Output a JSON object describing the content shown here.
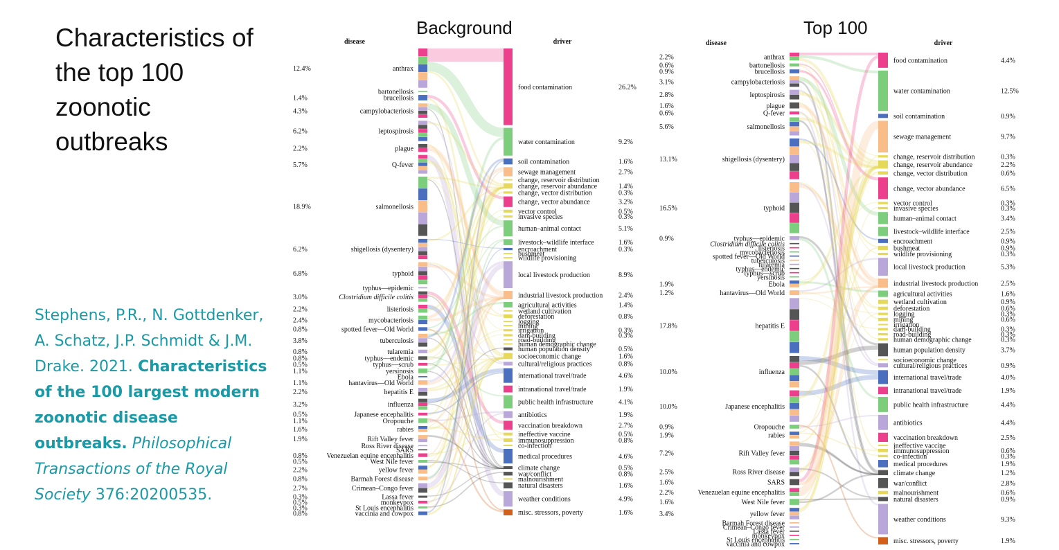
{
  "title": "Characteristics of the top 100 zoonotic outbreaks",
  "citation": {
    "authors": "Stephens, P.R., N. Gottdenker, A. Schatz, J.P. Schmidt & J.M. Drake. 2021.",
    "article": "Characteristics of the 100 largest modern zoonotic disease outbreaks.",
    "journal": "Philosophical Transactions of the Royal Society",
    "volume": "376:20200535."
  },
  "colors": {
    "food": "#ec3f8c",
    "water": "#7ccd7c",
    "soil": "#4a6fbf",
    "sewage": "#f9bd8a",
    "purple": "#b9a7d9",
    "darkgray": "#555555"
  },
  "chart_data": [
    {
      "type": "sankey",
      "title": "Background",
      "left_header": "disease",
      "right_header": "driver",
      "diseases": [
        {
          "name": "anthrax",
          "pct": "12.4%"
        },
        {
          "name": "bartonellosis",
          "pct": ""
        },
        {
          "name": "brucellosis",
          "pct": "1.4%"
        },
        {
          "name": "campylobacteriosis",
          "pct": "4.3%"
        },
        {
          "name": "leptospirosis",
          "pct": "6.2%"
        },
        {
          "name": "plague",
          "pct": "2.2%"
        },
        {
          "name": "Q-fever",
          "pct": "5.7%"
        },
        {
          "name": "salmonellosis",
          "pct": "18.9%"
        },
        {
          "name": "shigellosis (dysentery)",
          "pct": "6.2%"
        },
        {
          "name": "typhoid",
          "pct": "6.8%"
        },
        {
          "name": "typhus—epidemic",
          "pct": ""
        },
        {
          "name": "Clostridium difficile colitis",
          "pct": "3.0%"
        },
        {
          "name": "listeriosis",
          "pct": "2.2%"
        },
        {
          "name": "mycobacteriosis",
          "pct": "2.4%"
        },
        {
          "name": "spotted fever—Old World",
          "pct": "0.8%"
        },
        {
          "name": "tuberculosis",
          "pct": "3.8%"
        },
        {
          "name": "tularemia",
          "pct": "0.8%"
        },
        {
          "name": "typhus—endemic",
          "pct": "0.8%"
        },
        {
          "name": "typhus—scrub",
          "pct": "0.5%"
        },
        {
          "name": "yersinosis",
          "pct": "1.1%"
        },
        {
          "name": "Ebola",
          "pct": ""
        },
        {
          "name": "hantavirus—Old World",
          "pct": "1.1%"
        },
        {
          "name": "hepatitis E",
          "pct": "2.2%"
        },
        {
          "name": "influenza",
          "pct": "3.2%"
        },
        {
          "name": "Japanese encephalitis",
          "pct": "0.5%"
        },
        {
          "name": "Oropouche",
          "pct": "1.1%"
        },
        {
          "name": "rabies",
          "pct": "1.6%"
        },
        {
          "name": "Rift Valley fever",
          "pct": "1.9%"
        },
        {
          "name": "Ross River disease",
          "pct": ""
        },
        {
          "name": "SARS",
          "pct": ""
        },
        {
          "name": "Venezuelan equine encephalitis",
          "pct": "0.8%"
        },
        {
          "name": "West Nile fever",
          "pct": "0.5%"
        },
        {
          "name": "yellow fever",
          "pct": "2.2%"
        },
        {
          "name": "Barmah Forest disease",
          "pct": "0.8%"
        },
        {
          "name": "Crimean–Congo fever",
          "pct": "2.7%"
        },
        {
          "name": "Lassa fever",
          "pct": "0.3%"
        },
        {
          "name": "monkeypox",
          "pct": "0.5%"
        },
        {
          "name": "St Louis encephalitis",
          "pct": "0.3%"
        },
        {
          "name": "vaccinia and cowpox",
          "pct": "0.8%"
        }
      ],
      "drivers": [
        {
          "name": "food contamination",
          "pct": "26.2%"
        },
        {
          "name": "water contamination",
          "pct": "9.2%"
        },
        {
          "name": "soil contamination",
          "pct": "1.6%"
        },
        {
          "name": "sewage management",
          "pct": "2.7%"
        },
        {
          "name": "change, reservoir distribution",
          "pct": ""
        },
        {
          "name": "change, reservoir abundance",
          "pct": "1.4%"
        },
        {
          "name": "change, vector distribution",
          "pct": "0.3%"
        },
        {
          "name": "change, vector abundance",
          "pct": "3.2%"
        },
        {
          "name": "vector control",
          "pct": "0.5%"
        },
        {
          "name": "invasive species",
          "pct": "0.3%"
        },
        {
          "name": "human–animal contact",
          "pct": "5.1%"
        },
        {
          "name": "livestock–wildlife interface",
          "pct": "1.6%"
        },
        {
          "name": "encroachment",
          "pct": "0.3%"
        },
        {
          "name": "bushmeat",
          "pct": ""
        },
        {
          "name": "wildlife provisioning",
          "pct": ""
        },
        {
          "name": "local livestock production",
          "pct": "8.9%"
        },
        {
          "name": "industrial livestock production",
          "pct": "2.4%"
        },
        {
          "name": "agricultural activities",
          "pct": "1.4%"
        },
        {
          "name": "wetland cultivation",
          "pct": ""
        },
        {
          "name": "deforestation",
          "pct": "0.8%"
        },
        {
          "name": "logging",
          "pct": ""
        },
        {
          "name": "mining",
          "pct": ""
        },
        {
          "name": "irrigation",
          "pct": "0.3%"
        },
        {
          "name": "dam-building",
          "pct": "0.3%"
        },
        {
          "name": "road-building",
          "pct": ""
        },
        {
          "name": "human demographic change",
          "pct": ""
        },
        {
          "name": "human population density",
          "pct": "0.5%"
        },
        {
          "name": "socioeconomic change",
          "pct": "1.6%"
        },
        {
          "name": "cultural/religious practices",
          "pct": "0.8%"
        },
        {
          "name": "international travel/trade",
          "pct": "4.6%"
        },
        {
          "name": "intranational travel/trade",
          "pct": "1.9%"
        },
        {
          "name": "public health infrastructure",
          "pct": "4.1%"
        },
        {
          "name": "antibiotics",
          "pct": "1.9%"
        },
        {
          "name": "vaccination breakdown",
          "pct": "2.7%"
        },
        {
          "name": "ineffective vaccine",
          "pct": "0.5%"
        },
        {
          "name": "immunosuppression",
          "pct": "0.8%"
        },
        {
          "name": "co-infection",
          "pct": ""
        },
        {
          "name": "medical procedures",
          "pct": "4.6%"
        },
        {
          "name": "climate change",
          "pct": "0.5%"
        },
        {
          "name": "war/conflict",
          "pct": "0.8%"
        },
        {
          "name": "malnourishment",
          "pct": ""
        },
        {
          "name": "natural disasters",
          "pct": "1.6%"
        },
        {
          "name": "weather conditions",
          "pct": "4.9%"
        },
        {
          "name": "misc. stressors, poverty",
          "pct": "1.6%"
        }
      ]
    },
    {
      "type": "sankey",
      "title": "Top 100",
      "left_header": "disease",
      "right_header": "driver",
      "diseases": [
        {
          "name": "anthrax",
          "pct": "2.2%"
        },
        {
          "name": "bartonellosis",
          "pct": "0.6%"
        },
        {
          "name": "brucellosis",
          "pct": "0.9%"
        },
        {
          "name": "campylobacteriosis",
          "pct": "3.1%"
        },
        {
          "name": "leptospirosis",
          "pct": "2.8%"
        },
        {
          "name": "plague",
          "pct": "1.6%"
        },
        {
          "name": "Q-fever",
          "pct": "0.6%"
        },
        {
          "name": "salmonellosis",
          "pct": "5.6%"
        },
        {
          "name": "shigellosis (dysentery)",
          "pct": "13.1%"
        },
        {
          "name": "typhoid",
          "pct": "16.5%"
        },
        {
          "name": "typhus—epidemic",
          "pct": "0.9%"
        },
        {
          "name": "Clostridium difficile colitis",
          "pct": ""
        },
        {
          "name": "listeriosis",
          "pct": ""
        },
        {
          "name": "mycobacteriosis",
          "pct": ""
        },
        {
          "name": "spotted fever—Old World",
          "pct": ""
        },
        {
          "name": "tuberculosis",
          "pct": ""
        },
        {
          "name": "tularemia",
          "pct": ""
        },
        {
          "name": "typhus—endemic",
          "pct": ""
        },
        {
          "name": "typhus—scrub",
          "pct": ""
        },
        {
          "name": "yersinosis",
          "pct": ""
        },
        {
          "name": "Ebola",
          "pct": "1.9%"
        },
        {
          "name": "hantavirus—Old World",
          "pct": "1.2%"
        },
        {
          "name": "hepatitis E",
          "pct": "17.8%"
        },
        {
          "name": "influenza",
          "pct": "10.0%"
        },
        {
          "name": "Japanese encephalitis",
          "pct": "10.0%"
        },
        {
          "name": "Oropouche",
          "pct": "0.9%"
        },
        {
          "name": "rabies",
          "pct": "1.9%"
        },
        {
          "name": "Rift Valley fever",
          "pct": "7.2%"
        },
        {
          "name": "Ross River disease",
          "pct": "2.5%"
        },
        {
          "name": "SARS",
          "pct": "1.6%"
        },
        {
          "name": "Venezuelan equine encephalitis",
          "pct": "2.2%"
        },
        {
          "name": "West Nile fever",
          "pct": "1.6%"
        },
        {
          "name": "yellow fever",
          "pct": "3.4%"
        },
        {
          "name": "Barmah Forest disease",
          "pct": ""
        },
        {
          "name": "Crimean–Congo fever",
          "pct": ""
        },
        {
          "name": "Lassa fever",
          "pct": ""
        },
        {
          "name": "monkeypox",
          "pct": ""
        },
        {
          "name": "St Louis encephalitis",
          "pct": ""
        },
        {
          "name": "vaccinia and cowpox",
          "pct": ""
        }
      ],
      "drivers": [
        {
          "name": "food contamination",
          "pct": "4.4%"
        },
        {
          "name": "water contamination",
          "pct": "12.5%"
        },
        {
          "name": "soil contamination",
          "pct": "0.9%"
        },
        {
          "name": "sewage management",
          "pct": "9.7%"
        },
        {
          "name": "change, reservoir distribution",
          "pct": "0.3%"
        },
        {
          "name": "change, reservoir abundance",
          "pct": "2.2%"
        },
        {
          "name": "change, vector distribution",
          "pct": "0.6%"
        },
        {
          "name": "change, vector abundance",
          "pct": "6.5%"
        },
        {
          "name": "vector control",
          "pct": "0.3%"
        },
        {
          "name": "invasive species",
          "pct": "0.3%"
        },
        {
          "name": "human–animal contact",
          "pct": "3.4%"
        },
        {
          "name": "livestock–wildlife interface",
          "pct": "2.5%"
        },
        {
          "name": "encroachment",
          "pct": "0.9%"
        },
        {
          "name": "bushmeat",
          "pct": "0.9%"
        },
        {
          "name": "wildlife provisioning",
          "pct": "0.3%"
        },
        {
          "name": "local livestock production",
          "pct": "5.3%"
        },
        {
          "name": "industrial livestock production",
          "pct": "2.5%"
        },
        {
          "name": "agricultural activities",
          "pct": "1.6%"
        },
        {
          "name": "wetland cultivation",
          "pct": "0.9%"
        },
        {
          "name": "deforestation",
          "pct": "0.6%"
        },
        {
          "name": "logging",
          "pct": "0.3%"
        },
        {
          "name": "mining",
          "pct": "0.6%"
        },
        {
          "name": "irrigation",
          "pct": ""
        },
        {
          "name": "dam-building",
          "pct": "0.3%"
        },
        {
          "name": "road-building",
          "pct": "0.3%"
        },
        {
          "name": "human demographic change",
          "pct": "0.3%"
        },
        {
          "name": "human population density",
          "pct": "3.7%"
        },
        {
          "name": "socioeconomic change",
          "pct": ""
        },
        {
          "name": "cultural/religious practices",
          "pct": "0.9%"
        },
        {
          "name": "international travel/trade",
          "pct": "4.0%"
        },
        {
          "name": "intranational travel/trade",
          "pct": "1.9%"
        },
        {
          "name": "public health infrastructure",
          "pct": "4.4%"
        },
        {
          "name": "antibiotics",
          "pct": "4.4%"
        },
        {
          "name": "vaccination breakdown",
          "pct": "2.5%"
        },
        {
          "name": "ineffective vaccine",
          "pct": ""
        },
        {
          "name": "immunosuppression",
          "pct": "0.6%"
        },
        {
          "name": "co-infection",
          "pct": "0.3%"
        },
        {
          "name": "medical procedures",
          "pct": "1.9%"
        },
        {
          "name": "climate change",
          "pct": "1.2%"
        },
        {
          "name": "war/conflict",
          "pct": "2.8%"
        },
        {
          "name": "malnourishment",
          "pct": "0.6%"
        },
        {
          "name": "natural disasters",
          "pct": "0.9%"
        },
        {
          "name": "weather conditions",
          "pct": "9.3%"
        },
        {
          "name": "misc. stressors, poverty",
          "pct": "1.9%"
        }
      ]
    }
  ]
}
